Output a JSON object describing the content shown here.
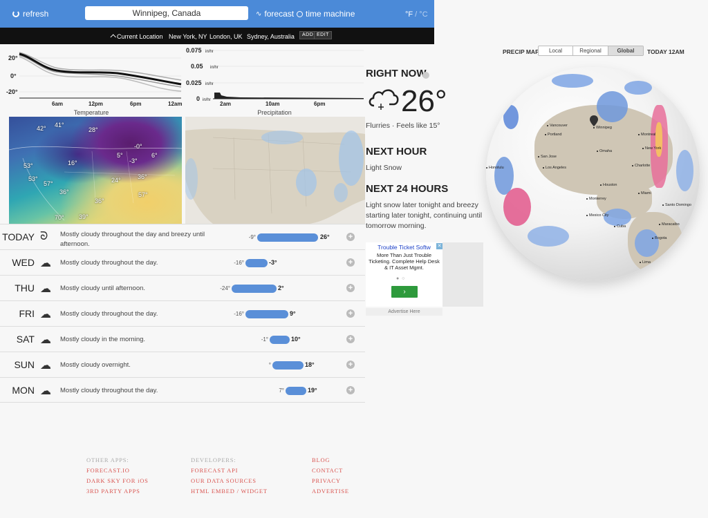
{
  "header": {
    "refresh_label": "refresh",
    "location_value": "Winnipeg, Canada",
    "forecast_label": "forecast",
    "time_machine_label": "time machine",
    "units_f": "°F",
    "units_sep": " / ",
    "units_c": "°C"
  },
  "locations": {
    "current": "Current Location",
    "items": [
      "New York, NY",
      "London, UK",
      "Sydney, Australia"
    ],
    "add": "ADD",
    "edit": "EDIT"
  },
  "temperature_chart": {
    "label": "Temperature",
    "y_ticks": [
      "20°",
      "0°",
      "-20°"
    ],
    "x_ticks": [
      "6am",
      "12pm",
      "6pm",
      "12am"
    ]
  },
  "precip_chart": {
    "label": "Precipitation",
    "y_ticks": [
      "0.075",
      "0.05",
      "0.025",
      "0"
    ],
    "y_unit": "in/hr",
    "x_ticks": [
      "2am",
      "10am",
      "6pm"
    ]
  },
  "temp_map": {
    "labels": [
      "42°",
      "41°",
      "28°",
      "53°",
      "53°",
      "57°",
      "16°",
      "5°",
      "-0°",
      "-3°",
      "6°",
      "24°",
      "36°",
      "36°",
      "57°",
      "36°",
      "70°",
      "39°"
    ]
  },
  "daily": [
    {
      "day": "TODAY",
      "icon": "wind-icon",
      "summary": "Mostly cloudy throughout the day and breezy until afternoon.",
      "low": "-9°",
      "high": "26°"
    },
    {
      "day": "WED",
      "icon": "partly-cloudy-icon",
      "summary": "Mostly cloudy throughout the day.",
      "low": "-16°",
      "high": "-3°"
    },
    {
      "day": "THU",
      "icon": "partly-cloudy-icon",
      "summary": "Mostly cloudy until afternoon.",
      "low": "-24°",
      "high": "2°"
    },
    {
      "day": "FRI",
      "icon": "partly-cloudy-icon",
      "summary": "Mostly cloudy throughout the day.",
      "low": "-16°",
      "high": "9°"
    },
    {
      "day": "SAT",
      "icon": "partly-cloudy-icon",
      "summary": "Mostly cloudy in the morning.",
      "low": "-1°",
      "high": "10°"
    },
    {
      "day": "SUN",
      "icon": "partly-cloudy-icon",
      "summary": "Mostly cloudy overnight.",
      "low": "°",
      "high": "18°"
    },
    {
      "day": "MON",
      "icon": "partly-cloudy-icon",
      "summary": "Mostly cloudy throughout the day.",
      "low": "7°",
      "high": "19°"
    }
  ],
  "right_now": {
    "heading": "RIGHT NOW",
    "temp": "26°",
    "summary": "Flurries · Feels like 15°",
    "icon": "snow-cloud-icon"
  },
  "next_hour": {
    "heading": "NEXT HOUR",
    "summary": "Light Snow"
  },
  "next_24": {
    "heading": "NEXT 24 HOURS",
    "summary": "Light snow later tonight and breezy starting later tonight, continuing until tomorrow morning."
  },
  "ad": {
    "title": "Trouble Ticket Softw",
    "text": "More Than Just Trouble Ticketing. Complete Help Desk & IT Asset Mgmt.",
    "go": "›",
    "footer": "Advertise Here"
  },
  "precip_map": {
    "title": "PRECIP MAP",
    "tabs": [
      "Local",
      "Regional",
      "Global"
    ],
    "active_tab": "Global",
    "time": "TODAY 12AM",
    "cities": [
      "Vancouver",
      "Portland",
      "San Jose",
      "Los Angeles",
      "Honolulu",
      "Winnipeg",
      "Omaha",
      "Montreal",
      "New York",
      "Charlotte",
      "Houston",
      "Miami",
      "Monterrey",
      "Mexico City",
      "Santo Domingo",
      "Maracaibo",
      "Bogota",
      "Lima",
      "Cuba"
    ]
  },
  "footer": {
    "col1": {
      "heading": "OTHER APPS:",
      "links": [
        "FORECAST.IO",
        "DARK SKY FOR iOS",
        "3RD PARTY APPS"
      ]
    },
    "col2": {
      "heading": "DEVELOPERS:",
      "links": [
        "FORECAST API",
        "OUR DATA SOURCES",
        "HTML EMBED / WIDGET"
      ]
    },
    "col3": {
      "heading": "",
      "links": [
        "BLOG",
        "CONTACT",
        "PRIVACY",
        "ADVERTISE"
      ]
    }
  },
  "colors": {
    "header_blue": "#4b8ad8",
    "bar_blue": "#5a8fd8",
    "footer_link": "#d9534f"
  }
}
